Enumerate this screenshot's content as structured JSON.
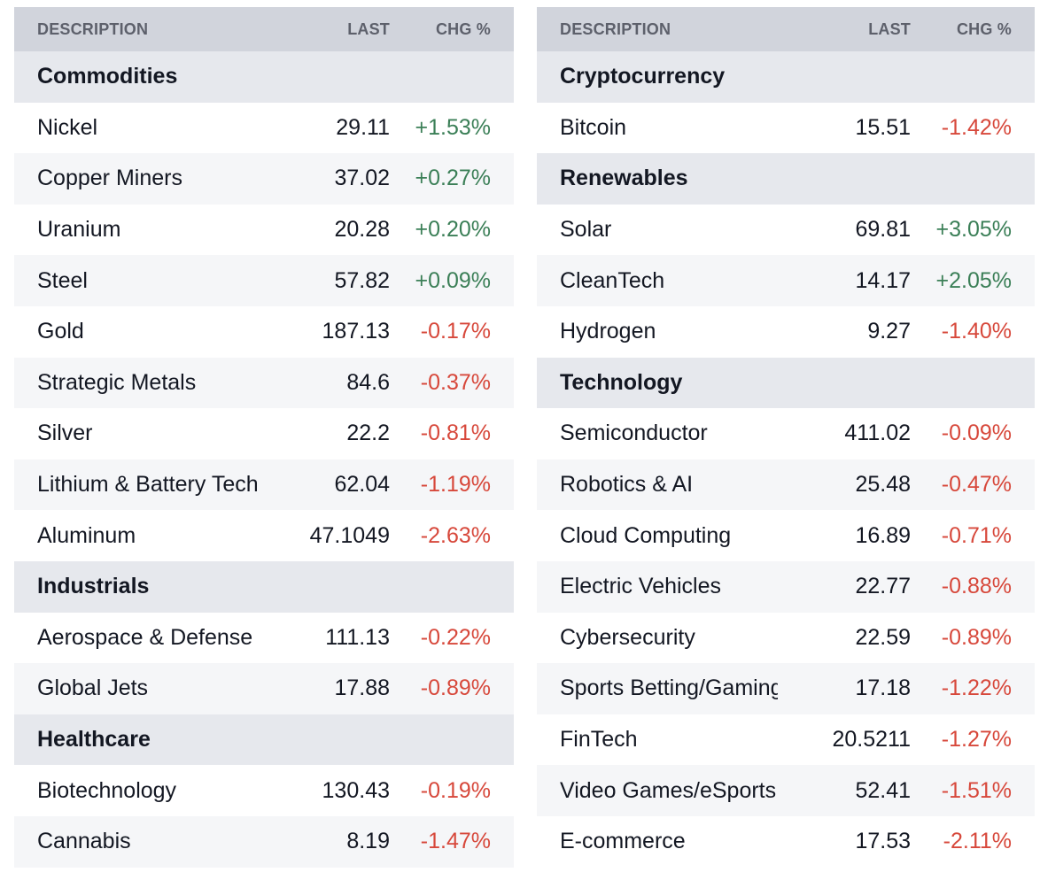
{
  "header": {
    "description": "DESCRIPTION",
    "last": "LAST",
    "chg": "CHG %"
  },
  "colors": {
    "positive": "#3b7f57",
    "negative": "#d7483b",
    "header_bg": "#d1d4dc",
    "category_bg": "#e6e8ed"
  },
  "left_table": {
    "rows": [
      {
        "type": "category",
        "name": "Commodities"
      },
      {
        "type": "item",
        "name": "Nickel",
        "last": "29.11",
        "chg": "+1.53%"
      },
      {
        "type": "item",
        "name": "Copper Miners",
        "last": "37.02",
        "chg": "+0.27%"
      },
      {
        "type": "item",
        "name": "Uranium",
        "last": "20.28",
        "chg": "+0.20%"
      },
      {
        "type": "item",
        "name": "Steel",
        "last": "57.82",
        "chg": "+0.09%"
      },
      {
        "type": "item",
        "name": "Gold",
        "last": "187.13",
        "chg": "-0.17%"
      },
      {
        "type": "item",
        "name": "Strategic Metals",
        "last": "84.6",
        "chg": "-0.37%"
      },
      {
        "type": "item",
        "name": "Silver",
        "last": "22.2",
        "chg": "-0.81%"
      },
      {
        "type": "item",
        "name": "Lithium & Battery Tech",
        "last": "62.04",
        "chg": "-1.19%"
      },
      {
        "type": "item",
        "name": "Aluminum",
        "last": "47.1049",
        "chg": "-2.63%"
      },
      {
        "type": "category",
        "name": "Industrials"
      },
      {
        "type": "item",
        "name": "Aerospace & Defense",
        "last": "111.13",
        "chg": "-0.22%"
      },
      {
        "type": "item",
        "name": "Global Jets",
        "last": "17.88",
        "chg": "-0.89%"
      },
      {
        "type": "category",
        "name": "Healthcare"
      },
      {
        "type": "item",
        "name": "Biotechnology",
        "last": "130.43",
        "chg": "-0.19%"
      },
      {
        "type": "item",
        "name": "Cannabis",
        "last": "8.19",
        "chg": "-1.47%"
      }
    ]
  },
  "right_table": {
    "rows": [
      {
        "type": "category",
        "name": "Cryptocurrency"
      },
      {
        "type": "item",
        "name": "Bitcoin",
        "last": "15.51",
        "chg": "-1.42%"
      },
      {
        "type": "category",
        "name": "Renewables"
      },
      {
        "type": "item",
        "name": "Solar",
        "last": "69.81",
        "chg": "+3.05%"
      },
      {
        "type": "item",
        "name": "CleanTech",
        "last": "14.17",
        "chg": "+2.05%"
      },
      {
        "type": "item",
        "name": "Hydrogen",
        "last": "9.27",
        "chg": "-1.40%"
      },
      {
        "type": "category",
        "name": "Technology"
      },
      {
        "type": "item",
        "name": "Semiconductor",
        "last": "411.02",
        "chg": "-0.09%"
      },
      {
        "type": "item",
        "name": "Robotics & AI",
        "last": "25.48",
        "chg": "-0.47%"
      },
      {
        "type": "item",
        "name": "Cloud Computing",
        "last": "16.89",
        "chg": "-0.71%"
      },
      {
        "type": "item",
        "name": "Electric Vehicles",
        "last": "22.77",
        "chg": "-0.88%"
      },
      {
        "type": "item",
        "name": "Cybersecurity",
        "last": "22.59",
        "chg": "-0.89%"
      },
      {
        "type": "item",
        "name": "Sports Betting/Gaming",
        "last": "17.18",
        "chg": "-1.22%"
      },
      {
        "type": "item",
        "name": "FinTech",
        "last": "20.5211",
        "chg": "-1.27%"
      },
      {
        "type": "item",
        "name": "Video Games/eSports",
        "last": "52.41",
        "chg": "-1.51%"
      },
      {
        "type": "item",
        "name": "E-commerce",
        "last": "17.53",
        "chg": "-2.11%"
      }
    ]
  }
}
